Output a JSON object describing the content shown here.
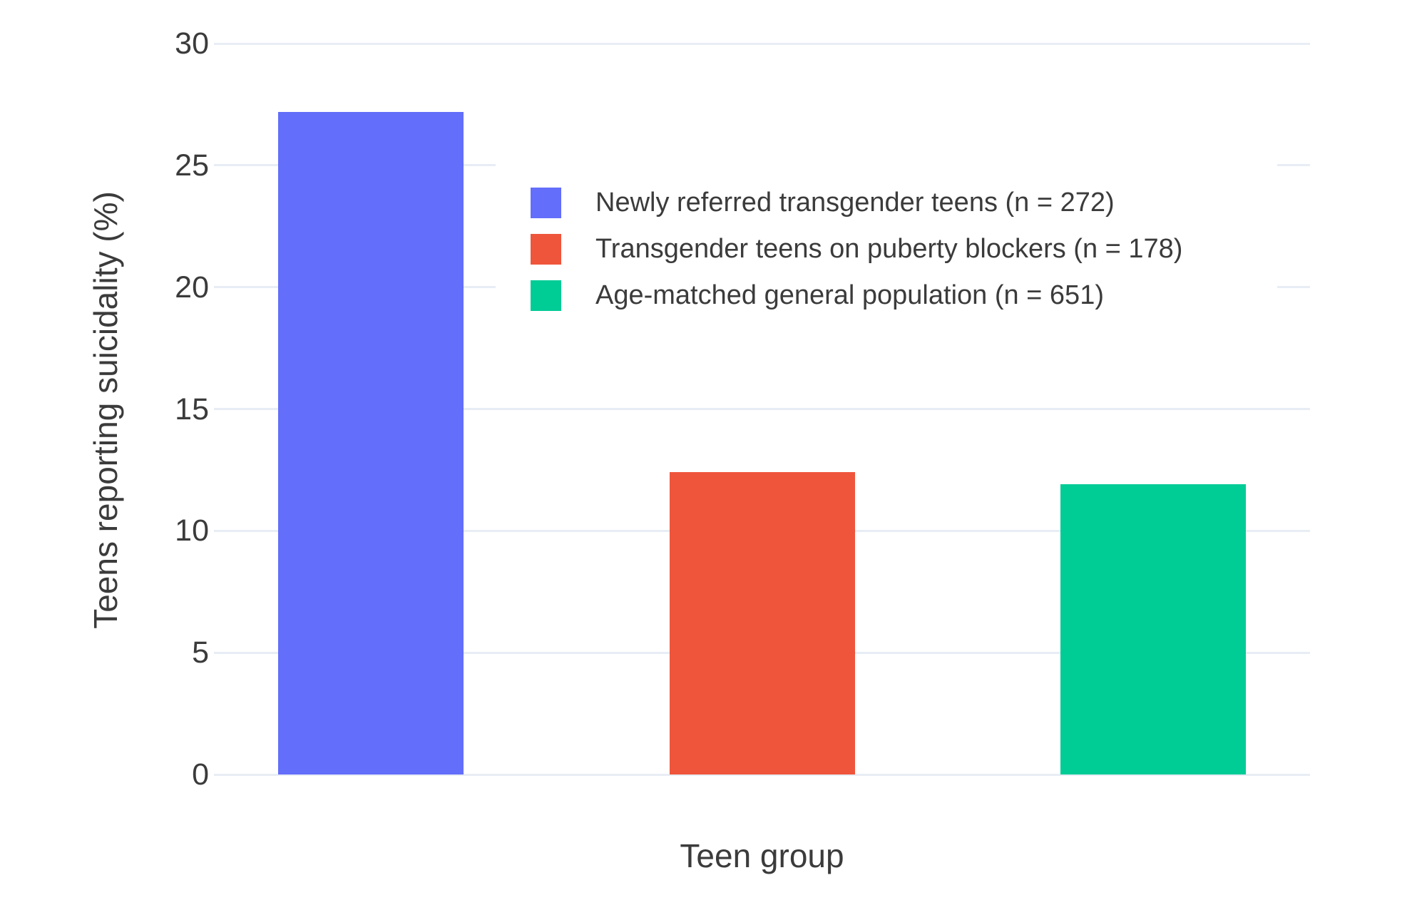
{
  "chart_data": {
    "type": "bar",
    "title": "",
    "xlabel": "Teen group",
    "ylabel": "Teens reporting suicidality (%)",
    "ylim": [
      0,
      30
    ],
    "yticks": [
      0,
      5,
      10,
      15,
      20,
      25,
      30
    ],
    "grid": true,
    "grid_color": "#e8edf5",
    "background_color": "#ffffff",
    "text_color": "#3b3b3b",
    "legend_position": "inside top-center, white background",
    "categories": [
      "Newly referred transgender teens",
      "Transgender teens on puberty blockers",
      "Age-matched general population"
    ],
    "series": [
      {
        "name": "Newly referred transgender teens (n = 272)",
        "value": 27.2,
        "color": "#636EFA"
      },
      {
        "name": "Transgender teens on puberty blockers (n = 178)",
        "value": 12.4,
        "color": "#EF553B"
      },
      {
        "name": "Age-matched general population (n = 651)",
        "value": 11.9,
        "color": "#00CC96"
      }
    ]
  }
}
